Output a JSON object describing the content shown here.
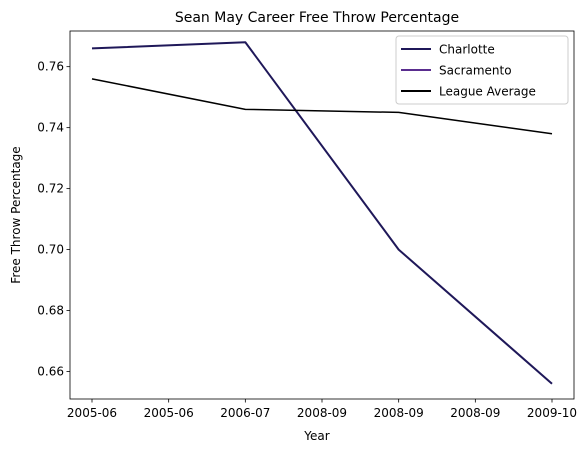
{
  "chart_data": {
    "type": "line",
    "title": "Sean May Career Free Throw Percentage",
    "xlabel": "Year",
    "ylabel": "Free Throw Percentage",
    "x_tick_labels": [
      "2005-06",
      "2005-06",
      "2006-07",
      "2008-09",
      "2008-09",
      "2008-09",
      "2009-10"
    ],
    "y_ticks": [
      0.66,
      0.68,
      0.7,
      0.72,
      0.74,
      0.76
    ],
    "ylim": [
      0.651,
      0.7717
    ],
    "x_points": [
      "2005-06",
      "2006-07",
      "2008-09",
      "2009-10"
    ],
    "series": [
      {
        "name": "Charlotte",
        "color": "#1f1859",
        "values": [
          0.766,
          0.768,
          0.7,
          0.656
        ]
      },
      {
        "name": "Sacramento",
        "color": "#5a2d8f",
        "values": []
      },
      {
        "name": "League Average",
        "color": "#000000",
        "values": [
          0.756,
          0.746,
          0.745,
          0.738
        ]
      }
    ],
    "legend_position": "top-right",
    "grid": false
  }
}
